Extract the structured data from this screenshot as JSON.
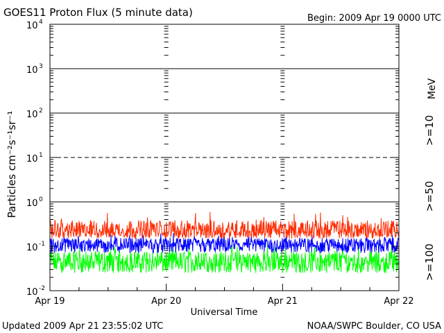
{
  "chart_data": {
    "type": "line",
    "title": "GOES11 Proton Flux (5 minute data)",
    "begin_label": "Begin: 2009 Apr 19 0000 UTC",
    "xlabel": "Universal Time",
    "ylabel": "Particles cm⁻²s⁻¹sr⁻¹",
    "unit_label": "MeV",
    "footer_left": "Updated 2009 Apr 21 23:55:02 UTC",
    "footer_right": "NOAA/SWPC Boulder, CO USA",
    "y_scale": "log",
    "ylim": [
      0.01,
      10000
    ],
    "xlim": [
      "2009-04-19",
      "2009-04-22"
    ],
    "x_ticks": [
      "Apr 19",
      "Apr 20",
      "Apr 21",
      "Apr 22"
    ],
    "y_ticks": [
      {
        "base": "10",
        "exp": "-2"
      },
      {
        "base": "10",
        "exp": "-1"
      },
      {
        "base": "10",
        "exp": "0"
      },
      {
        "base": "10",
        "exp": "1"
      },
      {
        "base": "10",
        "exp": "2"
      },
      {
        "base": "10",
        "exp": "3"
      },
      {
        "base": "10",
        "exp": "4"
      }
    ],
    "threshold_lines": [
      {
        "value": 1,
        "style": "solid"
      },
      {
        "value": 10,
        "style": "dashed"
      },
      {
        "value": 100,
        "style": "solid"
      },
      {
        "value": 1000,
        "style": "solid"
      }
    ],
    "series": [
      {
        "name": ">=10",
        "color": "#ff2a00",
        "min": 0.15,
        "max": 0.6,
        "typical": 0.22
      },
      {
        "name": ">=50",
        "color": "#0000ff",
        "min": 0.07,
        "max": 0.2,
        "typical": 0.11
      },
      {
        "name": ">=100",
        "color": "#00ff00",
        "min": 0.025,
        "max": 0.12,
        "typical": 0.045
      }
    ]
  }
}
